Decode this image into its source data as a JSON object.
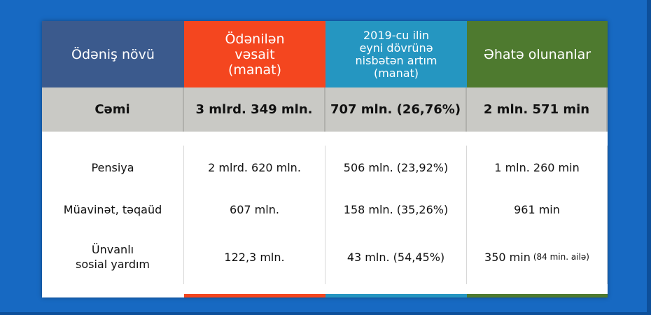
{
  "table": {
    "header": [
      [
        "Ödəniş növü"
      ],
      [
        "Ödənilən",
        "vəsait",
        "(manat)"
      ],
      [
        "2019-cu ilin",
        "eyni dövrünə",
        "nisbətən artım",
        "(manat)"
      ],
      [
        "Əhatə olunanlar"
      ]
    ],
    "total": [
      "Cəmi",
      "3 mlrd. 349 mln.",
      "707 mln. (26,76%)",
      "2 mln. 571 min"
    ],
    "rows": [
      [
        [
          "Pensiya"
        ],
        [
          "2 mlrd. 620 mln."
        ],
        [
          "506 mln. (23,92%)"
        ],
        [
          "1 mln. 260 min"
        ]
      ],
      [
        [
          "Müavinət, təqaüd"
        ],
        [
          "607 mln."
        ],
        [
          "158 mln. (35,26%)"
        ],
        [
          "961 min"
        ]
      ],
      [
        [
          "Ünvanlı",
          "sosial yardım"
        ],
        [
          "122,3 mln."
        ],
        [
          "43 mln. (54,45%)"
        ],
        [
          "350 min",
          "(84 min. ailə)"
        ]
      ]
    ]
  }
}
